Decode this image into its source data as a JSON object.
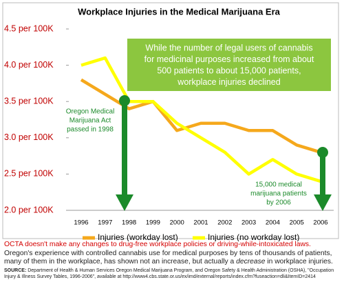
{
  "chart_data": {
    "type": "line",
    "title": "Workplace Injuries in the Medical Marijuana Era",
    "categories": [
      "1996",
      "1997",
      "1998",
      "1999",
      "2000",
      "2001",
      "2002",
      "2003",
      "2004",
      "2005",
      "2006"
    ],
    "series": [
      {
        "name": "Injuries (workday lost)",
        "color": "#f5a81c",
        "values": [
          3.8,
          3.6,
          3.4,
          3.5,
          3.1,
          3.2,
          3.2,
          3.1,
          3.1,
          2.9,
          2.8
        ]
      },
      {
        "name": "Injuries (no workday lost)",
        "color": "#ffff00",
        "values": [
          4.0,
          4.1,
          3.5,
          3.5,
          3.2,
          3.0,
          2.8,
          2.5,
          2.7,
          2.5,
          2.4
        ]
      }
    ],
    "ylim": [
      2.0,
      4.5
    ],
    "yticks": [
      {
        "value": 2.0,
        "label": "2.0 per 100K"
      },
      {
        "value": 2.5,
        "label": "2.5 per 100K"
      },
      {
        "value": 3.0,
        "label": "3.0 per 100K"
      },
      {
        "value": 3.5,
        "label": "3.5 per 100K"
      },
      {
        "value": 4.0,
        "label": "4.0 per 100K"
      },
      {
        "value": 4.5,
        "label": "4.5 per 100K"
      }
    ],
    "annotations": {
      "box": [
        "While the number of legal users of cannabis",
        "for medicinal purposes increased from about",
        "500 patients to about 15,000 patients,",
        "workplace injuries declined"
      ],
      "left": [
        "Oregon Medical",
        "Marijuana Act",
        "passed in 1998"
      ],
      "right": [
        "15,000 medical",
        "marijuana patients",
        "by 2006"
      ]
    }
  },
  "footer": {
    "red": "OCTA doesn't make any changes to drug-free workplace policies or driving-while-intoxicated laws.",
    "text_before": " Oregon's experience with controlled cannabis use for medical purposes by tens of thousands of patients, many of them in the workplace, has shown not an increase, but actually a ",
    "emphasis": "decrease",
    "text_after": " in workplace injuries.",
    "source_label": "SOURCE:",
    "source": " Department of Health & Human Services Oregon Medical Marijuana Program, and Oregon Safety & Health Administration (OSHA), \"Occupation Injury & Illness Survey Tables, 1996-2006\", available at http://www4.cbs.state.or.us/ex/imd/external/reports/index.cfm?fuseaction=dli&ItemID=2414"
  }
}
